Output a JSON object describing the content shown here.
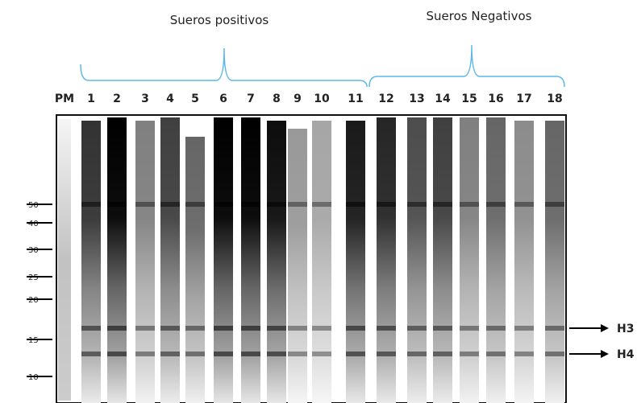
{
  "header": {
    "positive": "Sueros positivos",
    "negative": "Sueros Negativos"
  },
  "lanes": [
    "PM",
    "1",
    "2",
    "3",
    "4",
    "5",
    "6",
    "7",
    "8",
    "9",
    "10",
    "11",
    "12",
    "13",
    "14",
    "15",
    "16",
    "17",
    "18"
  ],
  "markers": [
    50,
    40,
    30,
    25,
    20,
    15,
    10
  ],
  "arrows": [
    "H3",
    "H4"
  ]
}
